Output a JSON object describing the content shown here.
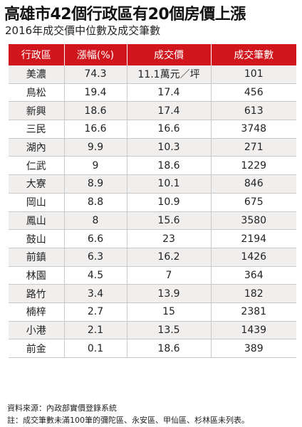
{
  "chart_data": {
    "type": "table",
    "title": "高雄市42個行政區有20個房價上漲",
    "subtitle": "2016年成交價中位數及成交筆數",
    "columns": [
      "行政區",
      "漲幅(%)",
      "成交價",
      "成交筆數"
    ],
    "rows": [
      {
        "district": "美濃",
        "rise": "74.3",
        "price": "11.1萬元／坪",
        "count": "101"
      },
      {
        "district": "鳥松",
        "rise": "19.4",
        "price": "17.4",
        "count": "456"
      },
      {
        "district": "新興",
        "rise": "18.6",
        "price": "17.4",
        "count": "613"
      },
      {
        "district": "三民",
        "rise": "16.6",
        "price": "16.6",
        "count": "3748"
      },
      {
        "district": "湖內",
        "rise": "9.9",
        "price": "10.3",
        "count": "271"
      },
      {
        "district": "仁武",
        "rise": "9",
        "price": "18.6",
        "count": "1229"
      },
      {
        "district": "大寮",
        "rise": "8.9",
        "price": "10.1",
        "count": "846"
      },
      {
        "district": "岡山",
        "rise": "8.8",
        "price": "10.9",
        "count": "675"
      },
      {
        "district": "鳳山",
        "rise": "8",
        "price": "15.6",
        "count": "3580"
      },
      {
        "district": "鼓山",
        "rise": "6.6",
        "price": "23",
        "count": "2194"
      },
      {
        "district": "前鎮",
        "rise": "6.3",
        "price": "16.2",
        "count": "1426"
      },
      {
        "district": "林園",
        "rise": "4.5",
        "price": "7",
        "count": "364"
      },
      {
        "district": "路竹",
        "rise": "3.4",
        "price": "13.9",
        "count": "182"
      },
      {
        "district": "楠梓",
        "rise": "2.7",
        "price": "15",
        "count": "2381"
      },
      {
        "district": "小港",
        "rise": "2.1",
        "price": "13.5",
        "count": "1439"
      },
      {
        "district": "前金",
        "rise": "0.1",
        "price": "18.6",
        "count": "389"
      }
    ]
  },
  "footer": {
    "source": "資料來源：內政部實價登錄系統",
    "note": "註：成交筆數未滿100筆的彌陀區、永安區、甲仙區、杉林區未列表。"
  },
  "colors": {
    "header_bg": "#d0161c",
    "header_text": "#ffffff",
    "row_alt_bg": "#f1efee"
  }
}
